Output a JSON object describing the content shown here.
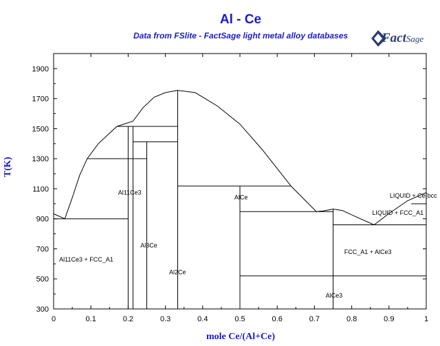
{
  "chart_data": {
    "type": "phase-diagram",
    "title": "Al - Ce",
    "subtitle": "Data from FSlite - FactSage light metal alloy databases",
    "xlabel": "mole Ce/(Al+Ce)",
    "ylabel": "T(K)",
    "xlim": [
      0,
      1
    ],
    "ylim": [
      300,
      2000
    ],
    "xticks": [
      0,
      0.1,
      0.2,
      0.3,
      0.4,
      0.5,
      0.6,
      0.7,
      0.8,
      0.9,
      1
    ],
    "yticks": [
      300,
      500,
      700,
      900,
      1100,
      1300,
      1500,
      1700,
      1900
    ],
    "liquidus": [
      [
        0,
        933
      ],
      [
        0.03,
        900
      ],
      [
        0.05,
        1040
      ],
      [
        0.07,
        1190
      ],
      [
        0.09,
        1300
      ],
      [
        0.12,
        1400
      ],
      [
        0.15,
        1470
      ],
      [
        0.17,
        1515
      ],
      [
        0.213,
        1550
      ],
      [
        0.24,
        1640
      ],
      [
        0.27,
        1710
      ],
      [
        0.3,
        1740
      ],
      [
        0.333,
        1755
      ],
      [
        0.38,
        1740
      ],
      [
        0.44,
        1650
      ],
      [
        0.5,
        1530
      ],
      [
        0.56,
        1360
      ],
      [
        0.637,
        1118
      ],
      [
        0.68,
        1010
      ],
      [
        0.705,
        948
      ],
      [
        0.725,
        953
      ],
      [
        0.75,
        965
      ],
      [
        0.775,
        955
      ],
      [
        0.81,
        915
      ],
      [
        0.86,
        860
      ],
      [
        0.9,
        935
      ],
      [
        0.95,
        1020
      ],
      [
        1,
        1075
      ]
    ],
    "isotherms": [
      {
        "T": 900,
        "x": [
          0,
          0.2
        ]
      },
      {
        "T": 1300,
        "x": [
          0.09,
          0.25
        ]
      },
      {
        "T": 1515,
        "x": [
          0.17,
          0.333
        ]
      },
      {
        "T": 1412,
        "x": [
          0.213,
          0.333
        ]
      },
      {
        "T": 1118,
        "x": [
          0.333,
          0.637
        ]
      },
      {
        "T": 948,
        "x": [
          0.5,
          0.75
        ]
      },
      {
        "T": 860,
        "x": [
          0.75,
          1
        ]
      },
      {
        "T": 520,
        "x": [
          0.5,
          1
        ]
      },
      {
        "T": 1000,
        "x": [
          0.96,
          1
        ]
      }
    ],
    "compound_lines": [
      {
        "x": 0.2,
        "T": [
          300,
          1515
        ]
      },
      {
        "x": 0.213,
        "T": [
          300,
          1515
        ]
      },
      {
        "x": 0.25,
        "T": [
          300,
          1412
        ]
      },
      {
        "x": 0.333,
        "T": [
          300,
          1755
        ]
      },
      {
        "x": 0.5,
        "T": [
          300,
          1118
        ]
      },
      {
        "x": 0.75,
        "T": [
          300,
          965
        ]
      }
    ],
    "annotations": [
      {
        "text": "Al11Ce3",
        "x": 0.173,
        "T": 1060
      },
      {
        "text": "AlCe",
        "x": 0.485,
        "T": 1030
      },
      {
        "text": "Al3Ce",
        "x": 0.233,
        "T": 710
      },
      {
        "text": "Al2Ce",
        "x": 0.31,
        "T": 530
      },
      {
        "text": "Al11Ce3 + FCC_A1",
        "x": 0.015,
        "T": 615
      },
      {
        "text": "LIQUID + Ce(bcc",
        "x": 0.902,
        "T": 1040
      },
      {
        "text": "LIQUID + FCC_A1",
        "x": 0.855,
        "T": 925
      },
      {
        "text": "FCC_A1 + AlCe3",
        "x": 0.78,
        "T": 665
      },
      {
        "text": "AlCe3",
        "x": 0.73,
        "T": 375
      }
    ]
  },
  "logo": {
    "brand_a": "Fact",
    "brand_b": "Sage"
  }
}
